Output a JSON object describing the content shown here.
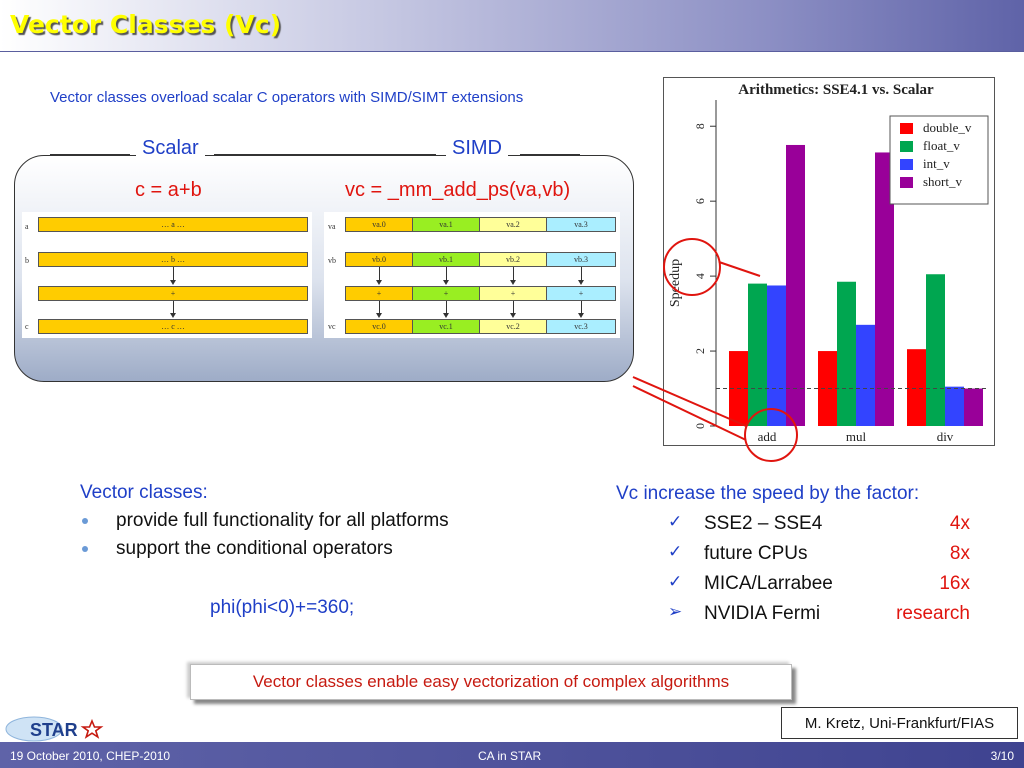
{
  "slide": {
    "title": "Vector Classes (Vc)",
    "subtitle": "Vector classes overload scalar C operators with SIMD/SIMT extensions"
  },
  "panel": {
    "scalar_label": "Scalar",
    "simd_label": "SIMD",
    "scalar_eq": "c = a+b",
    "simd_eq": "vc = _mm_add_ps(va,vb)"
  },
  "scalar_diagram": {
    "row_labels": [
      "a",
      "b",
      "c"
    ],
    "cells": [
      "… a …",
      "… b …",
      "+",
      "… c …"
    ]
  },
  "simd_diagram": {
    "row_labels": [
      "va",
      "vb",
      "vc"
    ],
    "va": [
      "va.0",
      "va.1",
      "va.2",
      "va.3"
    ],
    "vb": [
      "vb.0",
      "vb.1",
      "vb.2",
      "vb.3"
    ],
    "ops": [
      "+",
      "+",
      "+",
      "+"
    ],
    "vc": [
      "vc.0",
      "vc.1",
      "vc.2",
      "vc.3"
    ],
    "lane_colors": [
      "#ffcc00",
      "#99ee22",
      "#ffff99",
      "#aaeeff"
    ]
  },
  "chart_data": {
    "type": "bar",
    "title": "Arithmetics: SSE4.1 vs. Scalar",
    "xlabel": "",
    "ylabel": "Speedup",
    "categories": [
      "add",
      "mul",
      "div"
    ],
    "series": [
      {
        "name": "double_v",
        "color": "#ff0000",
        "values": [
          2.0,
          2.0,
          2.05
        ]
      },
      {
        "name": "float_v",
        "color": "#00a650",
        "values": [
          3.8,
          3.85,
          4.05
        ]
      },
      {
        "name": "int_v",
        "color": "#3344ff",
        "values": [
          3.75,
          2.7,
          1.05
        ]
      },
      {
        "name": "short_v",
        "color": "#990099",
        "values": [
          7.5,
          7.3,
          1.0
        ]
      }
    ],
    "ylim": [
      0,
      8.7
    ],
    "yticks": [
      "0",
      "2",
      "4",
      "6",
      "8"
    ],
    "reference_line": 1,
    "legend": "top-right",
    "grid": false
  },
  "left": {
    "heading": "Vector classes:",
    "bullets": [
      "provide full functionality for all platforms",
      "support the conditional operators"
    ],
    "code": "phi(phi<0)+=360;"
  },
  "right": {
    "heading": "Vc increase the speed by the factor:",
    "items": [
      {
        "mark": "✓",
        "label": "SSE2 – SSE4",
        "value": "4x"
      },
      {
        "mark": "✓",
        "label": "future CPUs",
        "value": "8x"
      },
      {
        "mark": "✓",
        "label": "MICA/Larrabee",
        "value": "16x"
      },
      {
        "mark": "➢",
        "label": "NVIDIA Fermi",
        "value": "research"
      }
    ]
  },
  "callout": "Vector classes enable easy vectorization of complex algorithms",
  "author": "M. Kretz, Uni-Frankfurt/FIAS",
  "logo": {
    "text": "STAR",
    "icon": "star-icon"
  },
  "footer": {
    "date_event": "19 October 2010, CHEP-2010",
    "center": "CA in STAR",
    "page": "3/10"
  },
  "colors": {
    "accent_blue": "#1f3fc7",
    "accent_red": "#e0150f",
    "title_yellow": "#ffff00",
    "footer_bg": "#4e5299"
  }
}
